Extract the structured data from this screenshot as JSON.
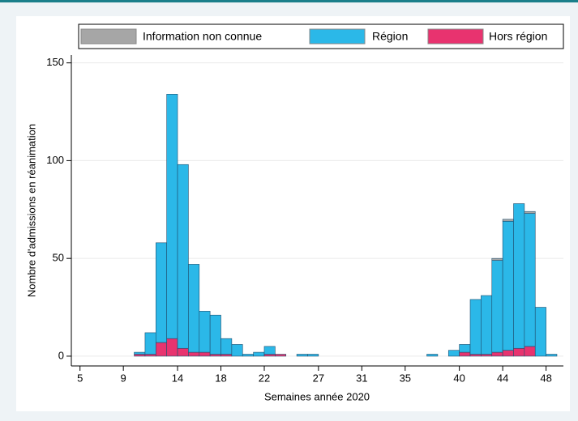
{
  "chart_data": {
    "type": "stacked-histogram",
    "xlabel": "Semaines année 2020",
    "ylabel": "Nombre d'admissions en réanimation",
    "x": [
      10,
      11,
      12,
      13,
      14,
      15,
      16,
      17,
      18,
      19,
      20,
      21,
      22,
      23,
      25,
      26,
      37,
      39,
      40,
      41,
      42,
      43,
      44,
      45,
      46,
      47,
      48
    ],
    "series": [
      {
        "name": "Information non connue",
        "color": "#a6a6a6",
        "values": [
          0,
          0,
          0,
          0,
          0,
          0,
          0,
          0,
          0,
          0,
          0,
          0,
          0,
          0,
          0,
          0,
          0,
          0,
          0,
          0,
          0,
          1,
          1,
          0,
          1,
          0,
          0
        ]
      },
      {
        "name": "Région",
        "color": "#2bb8e8",
        "values": [
          1,
          11,
          51,
          125,
          94,
          45,
          21,
          20,
          8,
          6,
          1,
          2,
          4,
          0,
          1,
          1,
          1,
          3,
          4,
          28,
          30,
          47,
          66,
          74,
          68,
          25,
          1
        ]
      },
      {
        "name": "Hors région",
        "color": "#e8336f",
        "values": [
          1,
          1,
          7,
          9,
          4,
          2,
          2,
          1,
          1,
          0,
          0,
          0,
          1,
          1,
          0,
          0,
          0,
          0,
          2,
          1,
          1,
          2,
          3,
          4,
          5,
          0,
          0
        ]
      }
    ],
    "xlim": [
      4.2,
      49.6
    ],
    "xticks": [
      5,
      9,
      14,
      18,
      22,
      27,
      31,
      35,
      40,
      44,
      48
    ],
    "ylim": [
      -5,
      154
    ],
    "yticks": [
      0,
      50,
      100,
      150
    ],
    "grid": true
  }
}
